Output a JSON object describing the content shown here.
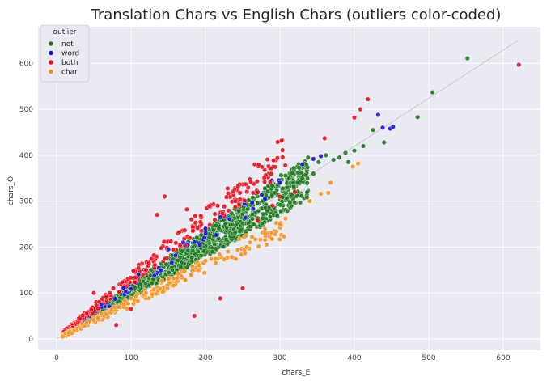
{
  "chart_data": {
    "type": "scatter",
    "title": "Translation Chars vs English Chars (outliers color-coded)",
    "xlabel": "chars_E",
    "ylabel": "chars_O",
    "xlim": [
      -25,
      650
    ],
    "ylim": [
      -25,
      680
    ],
    "xticks": [
      0,
      100,
      200,
      300,
      400,
      500,
      600
    ],
    "yticks": [
      0,
      100,
      200,
      300,
      400,
      500,
      600
    ],
    "grid": true,
    "background": "#eaeaf2",
    "legend": {
      "title": "outlier",
      "placement": "top-left",
      "entries": [
        {
          "label": "not",
          "color": "#1f7a1f"
        },
        {
          "label": "word",
          "color": "#1a1adb"
        },
        {
          "label": "both",
          "color": "#e8111d"
        },
        {
          "label": "char",
          "color": "#f59324"
        }
      ]
    },
    "reference_line": {
      "x": [
        0,
        620
      ],
      "y": [
        0,
        650
      ],
      "color": "#c8c8c8"
    },
    "series": [
      {
        "name": "not",
        "color": "#1f7a1f",
        "band_ratio": [
          0.9,
          1.18
        ],
        "x": [
          552,
          505,
          485,
          440,
          425,
          412,
          400,
          392,
          388,
          380,
          372,
          362,
          352,
          345,
          330,
          318
        ],
        "y": [
          611,
          537,
          483,
          428,
          455,
          420,
          410,
          385,
          405,
          395,
          390,
          400,
          385,
          360,
          350,
          340
        ]
      },
      {
        "name": "word",
        "color": "#1a1adb",
        "x": [
          432,
          438,
          448,
          452,
          355,
          345,
          330,
          300,
          280,
          220,
          200,
          170,
          150,
          120,
          110,
          90,
          60
        ],
        "y": [
          488,
          460,
          458,
          462,
          398,
          392,
          380,
          340,
          305,
          265,
          240,
          210,
          195,
          150,
          140,
          110,
          75
        ],
        "band_ratio": [
          1.03,
          1.2
        ]
      },
      {
        "name": "both",
        "color": "#e8111d",
        "x": [
          621,
          418,
          408,
          400,
          360,
          145,
          175,
          185,
          220,
          250,
          240,
          135,
          120,
          100,
          80,
          50,
          300,
          290,
          270,
          320
        ],
        "y": [
          597,
          522,
          500,
          482,
          437,
          310,
          282,
          50,
          88,
          110,
          300,
          270,
          150,
          65,
          30,
          100,
          310,
          290,
          258,
          320
        ],
        "band_ratio": [
          1.18,
          1.45
        ]
      },
      {
        "name": "char",
        "color": "#f59324",
        "x": [
          398,
          405,
          368,
          365,
          355,
          340,
          300,
          280,
          260,
          230,
          200,
          150,
          120,
          90,
          60,
          40
        ],
        "y": [
          375,
          382,
          340,
          318,
          316,
          300,
          250,
          230,
          210,
          190,
          170,
          130,
          100,
          75,
          55,
          35
        ],
        "band_ratio": [
          0.72,
          0.88
        ]
      }
    ]
  }
}
